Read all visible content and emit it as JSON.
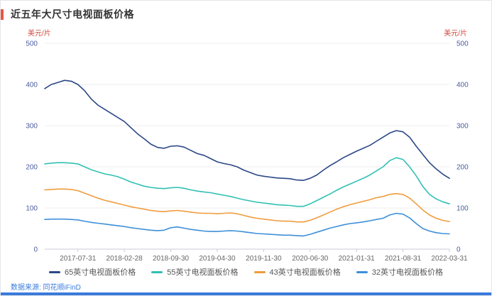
{
  "colors": {
    "title_accent": "#e9573f",
    "title_text": "#333333",
    "axis_unit": "#d14a3d",
    "axis_value": "#4a5c9e",
    "tick_label": "#666666",
    "grid_line": "#ececec",
    "axis_line": "#c9ccd4",
    "footer_text": "#3a7bdc",
    "bottom_bar": "#3a7bdc"
  },
  "footer": {
    "source": "数据来源: 同花顺iFinD"
  },
  "chart_data": {
    "type": "line",
    "title": "近五年大尺寸电视面板价格",
    "xlabel": "",
    "ylabel": "美元/片",
    "ylabel_right": "美元/片",
    "ylim": [
      0,
      500
    ],
    "y_ticks": [
      0,
      100,
      200,
      300,
      400,
      500
    ],
    "grid": true,
    "legend_position": "bottom",
    "x": [
      "2017-02",
      "2017-03",
      "2017-04",
      "2017-05",
      "2017-06",
      "2017-07",
      "2017-08",
      "2017-09",
      "2017-10",
      "2017-11",
      "2017-12",
      "2018-01",
      "2018-02",
      "2018-03",
      "2018-04",
      "2018-05",
      "2018-06",
      "2018-07",
      "2018-08",
      "2018-09",
      "2018-10",
      "2018-11",
      "2018-12",
      "2019-01",
      "2019-02",
      "2019-03",
      "2019-04",
      "2019-05",
      "2019-06",
      "2019-07",
      "2019-08",
      "2019-09",
      "2019-10",
      "2019-11",
      "2019-12",
      "2020-01",
      "2020-02",
      "2020-03",
      "2020-04",
      "2020-05",
      "2020-06",
      "2020-07",
      "2020-08",
      "2020-09",
      "2020-10",
      "2020-11",
      "2020-12",
      "2021-01",
      "2021-02",
      "2021-03",
      "2021-04",
      "2021-05",
      "2021-06",
      "2021-07",
      "2021-08",
      "2021-09",
      "2021-10",
      "2021-11",
      "2021-12",
      "2022-01",
      "2022-02",
      "2022-03"
    ],
    "x_tick_labels": [
      "2017-07-31",
      "2018-02-28",
      "2018-09-30",
      "2019-04-30",
      "2019-11-30",
      "2020-06-30",
      "2021-01-31",
      "2021-08-31",
      "2022-03-31"
    ],
    "x_tick_indices": [
      5,
      12,
      19,
      26,
      33,
      40,
      47,
      54,
      61
    ],
    "series": [
      {
        "key": "65",
        "name": "65英寸电视面板价格",
        "color": "#2b4786",
        "values": [
          390,
          400,
          405,
          410,
          408,
          400,
          385,
          365,
          350,
          340,
          330,
          320,
          310,
          295,
          280,
          268,
          255,
          247,
          245,
          250,
          251,
          248,
          240,
          232,
          228,
          220,
          212,
          208,
          205,
          200,
          192,
          186,
          180,
          177,
          175,
          173,
          172,
          171,
          168,
          167,
          172,
          180,
          192,
          203,
          212,
          222,
          230,
          238,
          245,
          252,
          262,
          272,
          282,
          288,
          285,
          272,
          250,
          230,
          210,
          195,
          182,
          172
        ]
      },
      {
        "key": "55",
        "name": "55英寸电视面板价格",
        "color": "#30c0b4",
        "values": [
          207,
          209,
          210,
          210,
          209,
          207,
          200,
          193,
          188,
          183,
          180,
          176,
          170,
          163,
          158,
          153,
          150,
          148,
          147,
          149,
          150,
          148,
          144,
          141,
          139,
          137,
          134,
          131,
          128,
          124,
          120,
          117,
          114,
          112,
          110,
          108,
          107,
          106,
          104,
          104,
          110,
          118,
          126,
          134,
          143,
          151,
          158,
          165,
          172,
          180,
          190,
          200,
          215,
          222,
          218,
          200,
          178,
          152,
          133,
          122,
          115,
          110
        ]
      },
      {
        "key": "43",
        "name": "43英寸电视面板价格",
        "color": "#f09c3d",
        "values": [
          144,
          145,
          146,
          146,
          145,
          142,
          136,
          130,
          124,
          119,
          115,
          111,
          107,
          103,
          100,
          97,
          94,
          92,
          91,
          93,
          94,
          92,
          90,
          88,
          87,
          87,
          86,
          87,
          88,
          86,
          82,
          78,
          75,
          73,
          71,
          69,
          68,
          68,
          66,
          66,
          70,
          76,
          83,
          90,
          97,
          103,
          108,
          112,
          116,
          120,
          125,
          128,
          133,
          135,
          133,
          124,
          110,
          95,
          83,
          75,
          70,
          67
        ]
      },
      {
        "key": "32",
        "name": "32英寸电视面板价格",
        "color": "#3d8fd8",
        "values": [
          72,
          73,
          73,
          73,
          72,
          71,
          68,
          65,
          63,
          61,
          59,
          57,
          55,
          52,
          50,
          48,
          46,
          45,
          46,
          52,
          54,
          51,
          48,
          46,
          44,
          43,
          43,
          44,
          45,
          44,
          42,
          40,
          38,
          37,
          36,
          35,
          34,
          34,
          33,
          32,
          36,
          41,
          46,
          51,
          55,
          59,
          62,
          64,
          66,
          69,
          72,
          75,
          83,
          87,
          85,
          76,
          62,
          50,
          44,
          40,
          38,
          37
        ]
      }
    ]
  }
}
